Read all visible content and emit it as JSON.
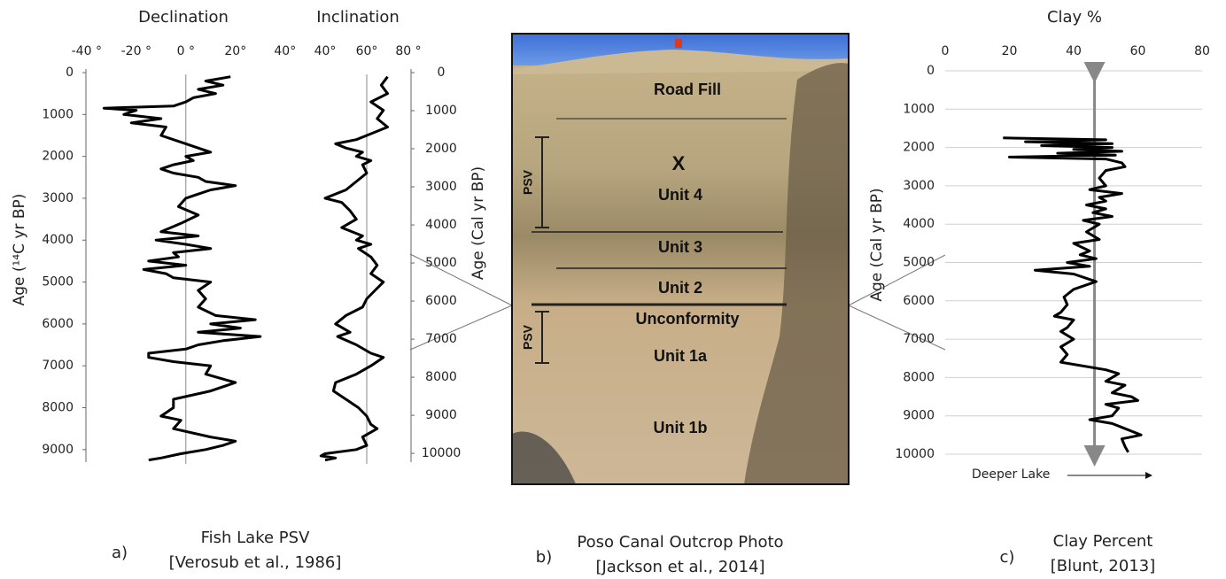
{
  "chart_data": [
    {
      "type": "line",
      "title": "Declination",
      "ylabel": "Age (¹⁴C yr BP)",
      "color": "#000000",
      "xlim": [
        -41,
        42
      ],
      "xticks": [
        {
          "value": -40,
          "label": "-40 °"
        },
        {
          "value": -20,
          "label": "-20 °"
        },
        {
          "value": 0,
          "label": "0 °"
        },
        {
          "value": 20,
          "label": "20°"
        },
        {
          "value": 40,
          "label": "40°"
        }
      ],
      "ylim": [
        0,
        9300
      ],
      "yticks": [
        0,
        1000,
        2000,
        3000,
        4000,
        5000,
        6000,
        7000,
        8000,
        9000
      ],
      "y_reversed": true,
      "reference_x": 0,
      "grid": false,
      "ages": [
        100,
        200,
        300,
        400,
        500,
        600,
        700,
        800,
        850,
        900,
        1000,
        1100,
        1200,
        1300,
        1500,
        1700,
        1800,
        1900,
        2000,
        2100,
        2200,
        2300,
        2400,
        2500,
        2600,
        2700,
        2800,
        2900,
        3000,
        3200,
        3400,
        3600,
        3800,
        3900,
        4000,
        4100,
        4200,
        4300,
        4400,
        4500,
        4600,
        4700,
        4800,
        4900,
        5000,
        5200,
        5400,
        5600,
        5800,
        5900,
        6000,
        6100,
        6200,
        6300,
        6400,
        6500,
        6600,
        6700,
        6800,
        6900,
        7000,
        7200,
        7400,
        7600,
        7800,
        8000,
        8200,
        8300,
        8500,
        8700,
        8800,
        8900,
        9000,
        9100,
        9200,
        9250
      ],
      "values": [
        18,
        8,
        15,
        5,
        12,
        3,
        0,
        -5,
        -33,
        -20,
        -25,
        -10,
        -22,
        -8,
        -10,
        0,
        5,
        10,
        0,
        3,
        -5,
        -10,
        -5,
        5,
        8,
        20,
        10,
        5,
        0,
        -3,
        5,
        -2,
        -10,
        5,
        -12,
        0,
        10,
        -5,
        -3,
        -15,
        0,
        -17,
        -8,
        -5,
        10,
        5,
        8,
        5,
        12,
        28,
        10,
        22,
        5,
        30,
        15,
        5,
        0,
        -15,
        -15,
        -5,
        10,
        8,
        20,
        10,
        -5,
        -5,
        -10,
        -2,
        -5,
        10,
        20,
        15,
        8,
        -2,
        -10,
        -15
      ]
    },
    {
      "type": "line",
      "title": "Inclination",
      "y2label": "Age (Cal yr BP)",
      "color": "#000000",
      "xlim": [
        36,
        82
      ],
      "xticks": [
        {
          "value": 40,
          "label": "40°"
        },
        {
          "value": 60,
          "label": "60°"
        },
        {
          "value": 80,
          "label": "80 °"
        }
      ],
      "ylim": [
        0,
        9300
      ],
      "y_reversed": true,
      "reference_x": 60,
      "grid": false,
      "y2lim": [
        0,
        10230
      ],
      "y2ticks": [
        0,
        1000,
        2000,
        3000,
        4000,
        5000,
        6000,
        7000,
        8000,
        9000,
        10000
      ],
      "ages": [
        100,
        300,
        500,
        700,
        900,
        1100,
        1300,
        1500,
        1600,
        1700,
        1800,
        1900,
        2000,
        2100,
        2200,
        2400,
        2600,
        2800,
        3000,
        3100,
        3300,
        3500,
        3700,
        3900,
        4000,
        4100,
        4200,
        4400,
        4600,
        4800,
        5000,
        5200,
        5400,
        5600,
        5800,
        6000,
        6200,
        6300,
        6500,
        6700,
        6800,
        7000,
        7200,
        7400,
        7600,
        7800,
        8000,
        8200,
        8400,
        8500,
        8700,
        8900,
        9000,
        9100,
        9150,
        9200,
        9250
      ],
      "values": [
        70,
        67,
        70,
        62,
        68,
        65,
        70,
        60,
        55,
        45,
        50,
        58,
        55,
        62,
        58,
        60,
        55,
        50,
        40,
        48,
        52,
        55,
        48,
        58,
        55,
        62,
        56,
        62,
        65,
        62,
        68,
        64,
        60,
        58,
        50,
        45,
        52,
        46,
        55,
        62,
        68,
        62,
        55,
        45,
        44,
        50,
        56,
        60,
        62,
        65,
        58,
        60,
        55,
        40,
        38,
        45,
        40
      ]
    },
    {
      "type": "line",
      "title": "Clay %",
      "ylabel": "Age (Cal yr BP)",
      "color": "#000000",
      "annotation": "Deeper Lake",
      "xlim": [
        0,
        80
      ],
      "xticks": [
        0,
        20,
        40,
        60,
        80
      ],
      "ylim": [
        0,
        10000
      ],
      "yticks": [
        0,
        1000,
        2000,
        3000,
        4000,
        5000,
        6000,
        7000,
        8000,
        9000,
        10000
      ],
      "y_reversed": true,
      "reference_x": 46.5,
      "grid": true,
      "ages": [
        1750,
        1800,
        1850,
        1900,
        1950,
        2000,
        2050,
        2100,
        2150,
        2200,
        2250,
        2300,
        2400,
        2500,
        2600,
        2800,
        3000,
        3100,
        3200,
        3300,
        3400,
        3500,
        3600,
        3700,
        3800,
        3900,
        4000,
        4200,
        4400,
        4500,
        4700,
        4800,
        4900,
        5000,
        5100,
        5200,
        5300,
        5500,
        5700,
        5900,
        6100,
        6300,
        6400,
        6500,
        6700,
        6800,
        7000,
        7200,
        7400,
        7600,
        7800,
        7900,
        8100,
        8200,
        8400,
        8500,
        8600,
        8700,
        8800,
        9000,
        9100,
        9200,
        9300,
        9400,
        9500,
        9600,
        9800,
        9950
      ],
      "values": [
        18,
        50,
        25,
        52,
        30,
        52,
        40,
        55,
        35,
        53,
        20,
        50,
        55,
        56,
        50,
        48,
        50,
        45,
        55,
        48,
        50,
        44,
        50,
        46,
        52,
        43,
        48,
        44,
        48,
        40,
        45,
        42,
        47,
        38,
        45,
        28,
        40,
        47,
        40,
        37,
        38,
        36,
        34,
        40,
        38,
        36,
        40,
        36,
        38,
        36,
        50,
        54,
        50,
        56,
        52,
        58,
        60,
        50,
        54,
        52,
        45,
        52,
        55,
        58,
        61,
        55,
        56,
        57
      ]
    }
  ],
  "photo": {
    "layers": [
      "Road Fill",
      "X",
      "Unit 4",
      "Unit 3",
      "Unit 2",
      "Unconformity",
      "Unit 1a",
      "Unit 1b"
    ],
    "psv": [
      "PSV",
      "PSV"
    ]
  },
  "captions": [
    {
      "letter": "a)",
      "title": "Fish Lake PSV",
      "source": "[Verosub et al., 1986]"
    },
    {
      "letter": "b)",
      "title": "Poso Canal Outcrop Photo",
      "source": "[Jackson et al., 2014]"
    },
    {
      "letter": "c)",
      "title": "Clay Percent",
      "source": "[Blunt, 2013]"
    }
  ]
}
